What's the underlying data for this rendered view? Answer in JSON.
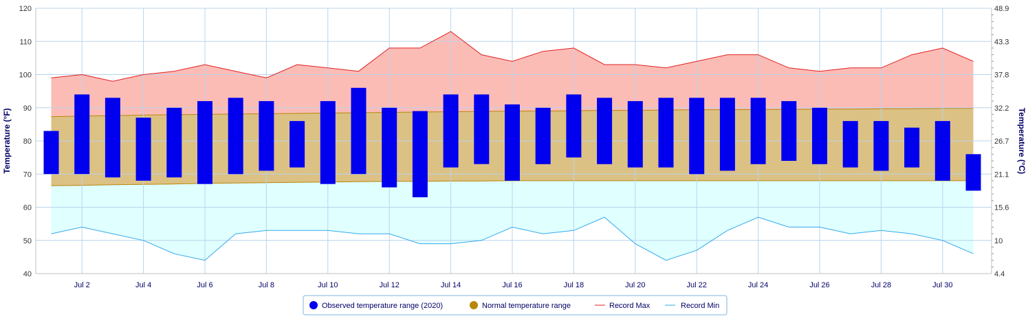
{
  "chart_data": {
    "type": "bar",
    "title": "",
    "xlabel": "",
    "ylabel": "Temperature (°F)",
    "ylabel_right": "Temperature (°C)",
    "ylim": [
      40,
      120
    ],
    "grid": true,
    "legend_position": "bottom",
    "x_tick_labels": [
      "Jul 2",
      "Jul 4",
      "Jul 6",
      "Jul 8",
      "Jul 10",
      "Jul 12",
      "Jul 14",
      "Jul 16",
      "Jul 18",
      "Jul 20",
      "Jul 22",
      "Jul 24",
      "Jul 26",
      "Jul 28",
      "Jul 30"
    ],
    "y_ticks_left": [
      "40",
      "50",
      "60",
      "70",
      "80",
      "90",
      "100",
      "110",
      "120"
    ],
    "y_ticks_right": [
      "4.4",
      "10",
      "15.6",
      "21.1",
      "26.7",
      "32.2",
      "37.8",
      "43.3",
      "48.9"
    ],
    "days": [
      1,
      2,
      3,
      4,
      5,
      6,
      7,
      8,
      9,
      10,
      11,
      12,
      13,
      14,
      15,
      16,
      17,
      18,
      19,
      20,
      21,
      22,
      23,
      24,
      25,
      26,
      27,
      28,
      29,
      30,
      31
    ],
    "series": [
      {
        "name": "Observed temperature range (2020)",
        "color": "#0000ee",
        "low": [
          70,
          70,
          69,
          68,
          69,
          67,
          70,
          71,
          72,
          67,
          70,
          66,
          63,
          72,
          73,
          68,
          73,
          75,
          73,
          72,
          72,
          70,
          71,
          73,
          74,
          73,
          72,
          71,
          72,
          68,
          65
        ],
        "high": [
          83,
          94,
          93,
          87,
          90,
          92,
          93,
          92,
          86,
          92,
          96,
          90,
          89,
          94,
          94,
          91,
          90,
          94,
          93,
          92,
          93,
          93,
          93,
          93,
          92,
          90,
          86,
          86,
          84,
          86,
          76
        ]
      },
      {
        "name": "Normal temperature range",
        "color": "#b8860b",
        "low": [
          66.5,
          66.6,
          66.8,
          66.9,
          67.0,
          67.2,
          67.3,
          67.4,
          67.5,
          67.6,
          67.7,
          67.8,
          67.8,
          67.9,
          67.9,
          68.0,
          68.0,
          68.0,
          68.0,
          68.0,
          68.0,
          68.0,
          68.0,
          68.0,
          68.0,
          68.0,
          68.0,
          68.0,
          68.0,
          68.0,
          68.0
        ],
        "high": [
          87.3,
          87.5,
          87.6,
          87.8,
          87.9,
          88.0,
          88.1,
          88.2,
          88.3,
          88.4,
          88.5,
          88.6,
          88.7,
          88.8,
          88.9,
          89.0,
          89.0,
          89.1,
          89.2,
          89.2,
          89.3,
          89.4,
          89.4,
          89.5,
          89.5,
          89.6,
          89.6,
          89.7,
          89.7,
          89.8,
          89.8
        ]
      },
      {
        "name": "Record Max",
        "color": "#e02020",
        "values": [
          99,
          100,
          98,
          100,
          101,
          103,
          101,
          99,
          103,
          102,
          101,
          108,
          108,
          113,
          106,
          104,
          107,
          108,
          103,
          103,
          102,
          104,
          106,
          106,
          102,
          101,
          102,
          102,
          106,
          108,
          104
        ]
      },
      {
        "name": "Record Min",
        "color": "#33aaee",
        "values": [
          52,
          54,
          52,
          50,
          46,
          44,
          52,
          53,
          53,
          53,
          52,
          52,
          49,
          49,
          50,
          54,
          52,
          53,
          57,
          49,
          44,
          47,
          53,
          57,
          54,
          54,
          52,
          53,
          52,
          50,
          46
        ]
      }
    ]
  },
  "colors": {
    "record_band_fill": "#fcbcb6",
    "normal_band_fill": "#dcc184",
    "min_band_fill": "#e0ffff",
    "grid": "#b8d4ec",
    "axis_text": "#000066"
  },
  "legend": {
    "observed": "Observed temperature range (2020)",
    "normal": "Normal temperature range",
    "record_max": "Record Max",
    "record_min": "Record Min"
  }
}
